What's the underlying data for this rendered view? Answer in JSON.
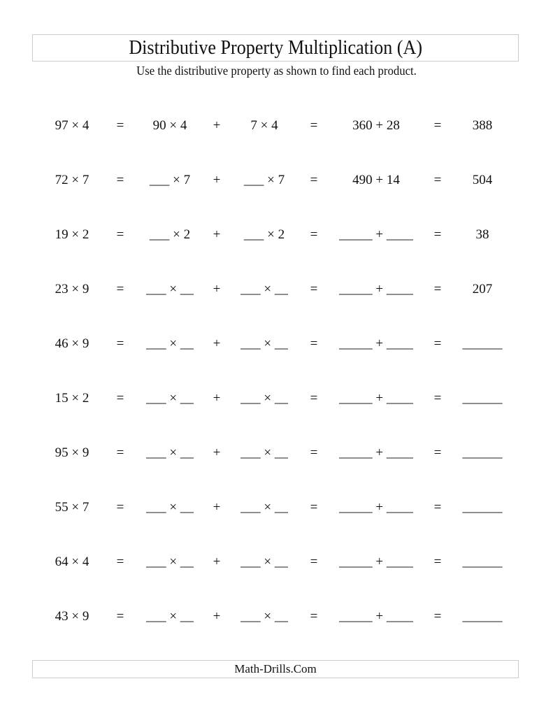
{
  "title": "Distributive Property Multiplication (A)",
  "instructions": "Use the distributive property as shown to find each product.",
  "rows": [
    [
      "97 × 4",
      "=",
      "90 × 4",
      "+",
      "7 × 4",
      "=",
      "360 + 28",
      "=",
      "388"
    ],
    [
      "72 × 7",
      "=",
      "___ × 7",
      "+",
      "___ × 7",
      "=",
      "490 + 14",
      "=",
      "504"
    ],
    [
      "19 × 2",
      "=",
      "___ × 2",
      "+",
      "___ × 2",
      "=",
      "_____ + ____",
      "=",
      "38"
    ],
    [
      "23 × 9",
      "=",
      "___ × __",
      "+",
      "___ × __",
      "=",
      "_____ + ____",
      "=",
      "207"
    ],
    [
      "46 × 9",
      "=",
      "___ × __",
      "+",
      "___ × __",
      "=",
      "_____ + ____",
      "=",
      "______"
    ],
    [
      "15 × 2",
      "=",
      "___ × __",
      "+",
      "___ × __",
      "=",
      "_____ + ____",
      "=",
      "______"
    ],
    [
      "95 × 9",
      "=",
      "___ × __",
      "+",
      "___ × __",
      "=",
      "_____ + ____",
      "=",
      "______"
    ],
    [
      "55 × 7",
      "=",
      "___ × __",
      "+",
      "___ × __",
      "=",
      "_____ + ____",
      "=",
      "______"
    ],
    [
      "64 × 4",
      "=",
      "___ × __",
      "+",
      "___ × __",
      "=",
      "_____ + ____",
      "=",
      "______"
    ],
    [
      "43 × 9",
      "=",
      "___ × __",
      "+",
      "___ × __",
      "=",
      "_____ + ____",
      "=",
      "______"
    ]
  ],
  "footer": "Math-Drills.Com"
}
